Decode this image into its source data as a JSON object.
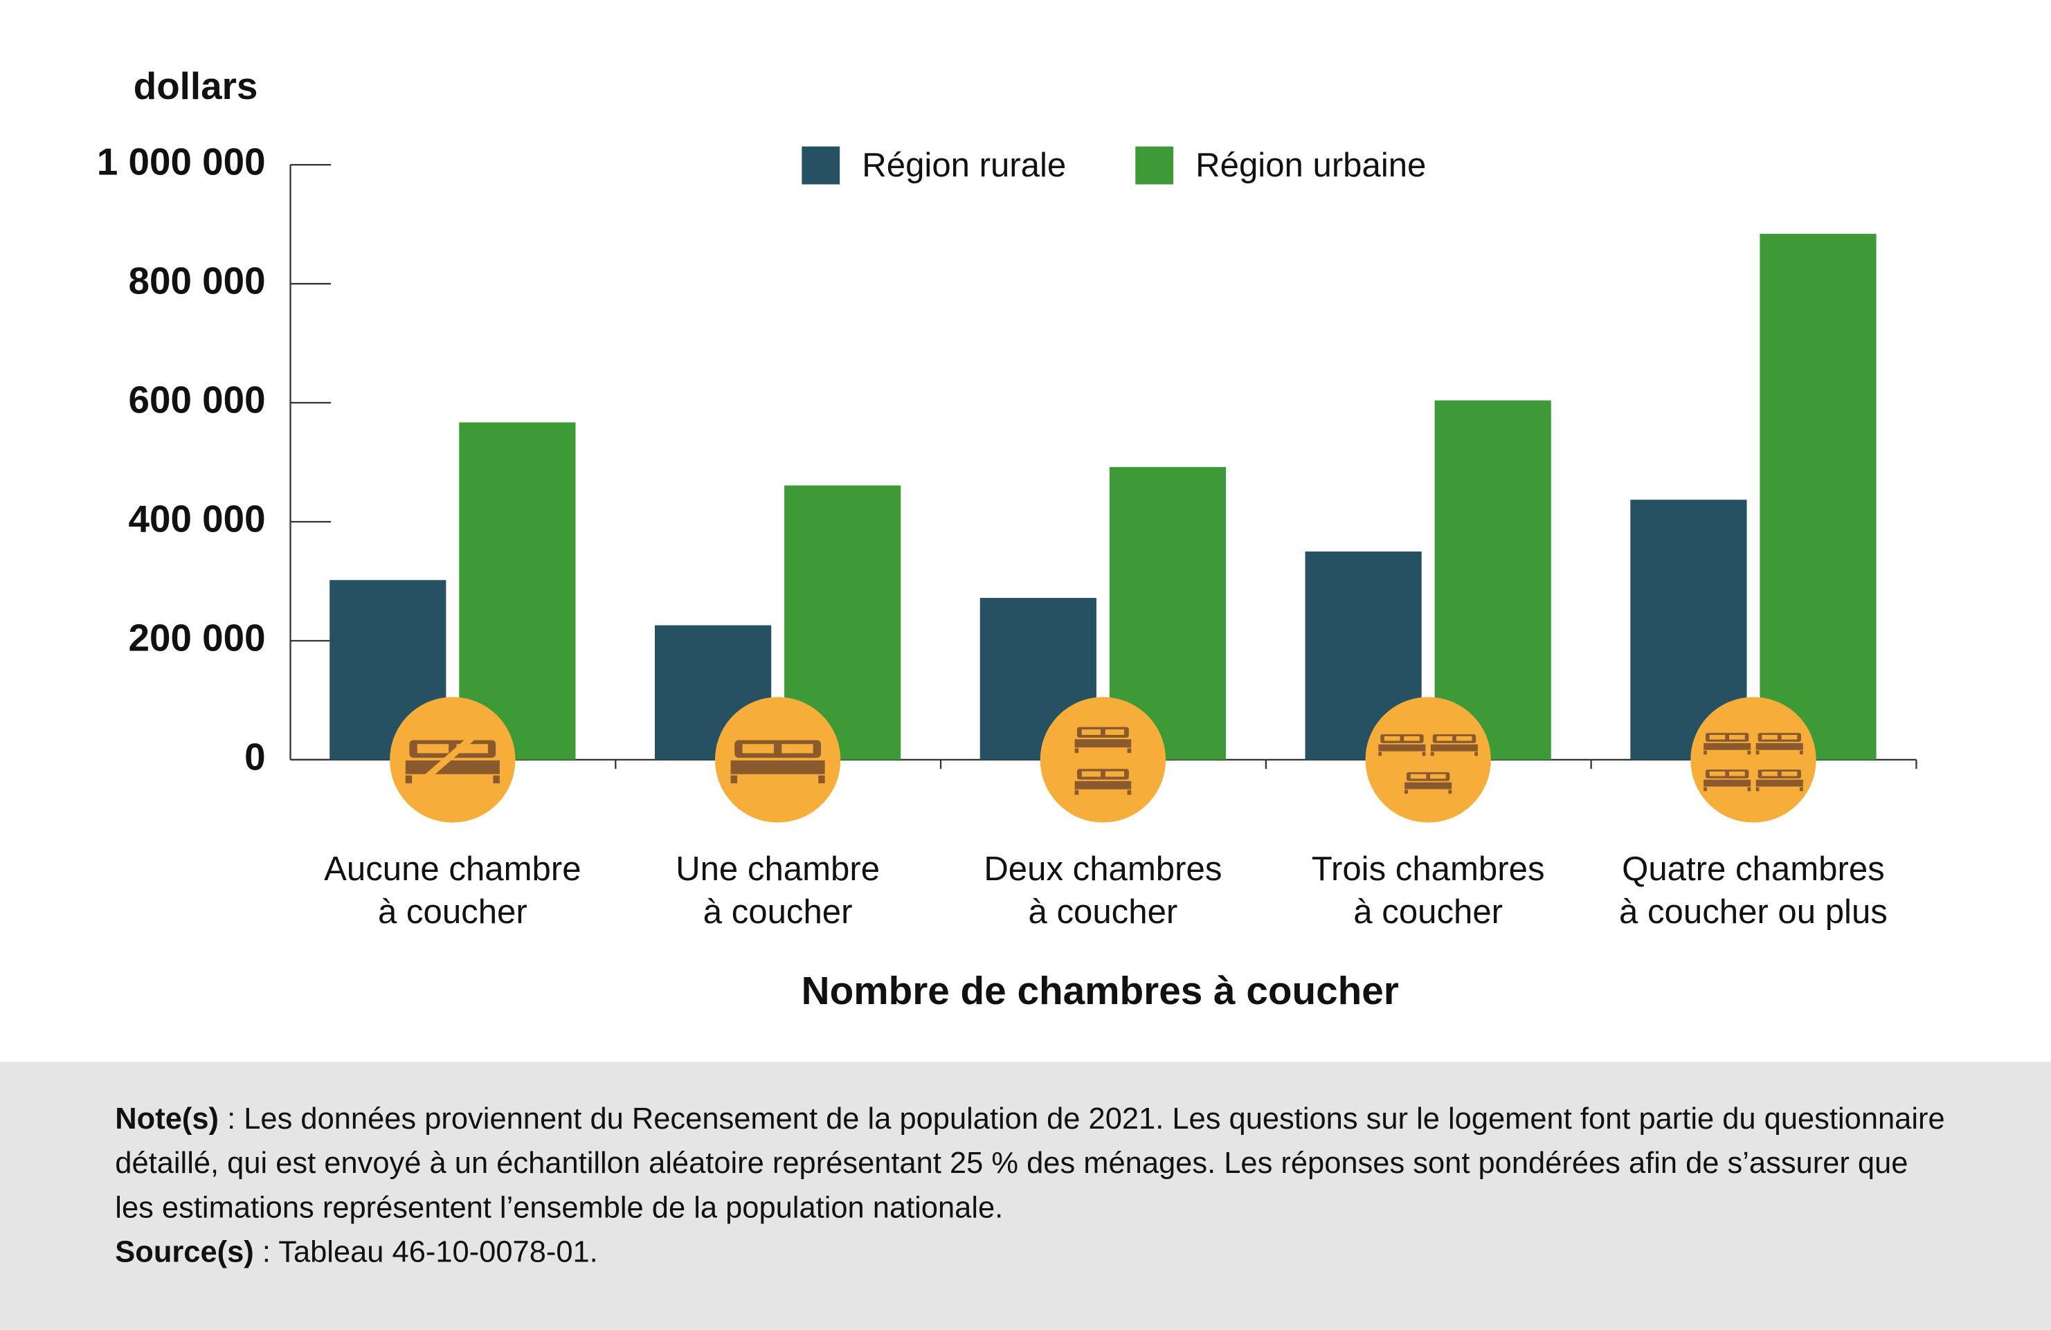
{
  "chart_data": {
    "type": "bar",
    "y_label": "dollars",
    "x_label": "Nombre de chambres à coucher",
    "categories": [
      "Aucune chambre\nà coucher",
      "Une chambre\nà coucher",
      "Deux chambres\nà coucher",
      "Trois chambres\nà coucher",
      "Quatre chambres\nà coucher ou plus"
    ],
    "series": [
      {
        "name": "Région rurale",
        "color": "#255163",
        "values": [
          302000,
          226000,
          272000,
          350000,
          437000
        ]
      },
      {
        "name": "Région urbaine",
        "color": "#3d9a37",
        "values": [
          567000,
          461000,
          492000,
          604000,
          884000
        ]
      }
    ],
    "ylim": [
      0,
      1000000
    ],
    "yticks": [
      0,
      {
        "value": 200000,
        "label": "200 000"
      },
      {
        "value": 400000,
        "label": "400 000"
      },
      {
        "value": 600000,
        "label": "600 000"
      },
      {
        "value": 800000,
        "label": "800 000"
      },
      {
        "value": 1000000,
        "label": "1 000 000"
      }
    ],
    "grid": false
  },
  "notes": {
    "note_label": "Note(s)",
    "note_text": " : Les données proviennent du Recensement de la population de 2021. Les questions sur le logement font partie du questionnaire détaillé, qui est envoyé à un échantillon aléatoire représentant 25 % des ménages. Les réponses sont pondérées afin de s’assurer que les estimations représentent l’ensemble de la population nationale.",
    "source_label": "Source(s)",
    "source_text": " : Tableau 46-10-0078-01."
  }
}
